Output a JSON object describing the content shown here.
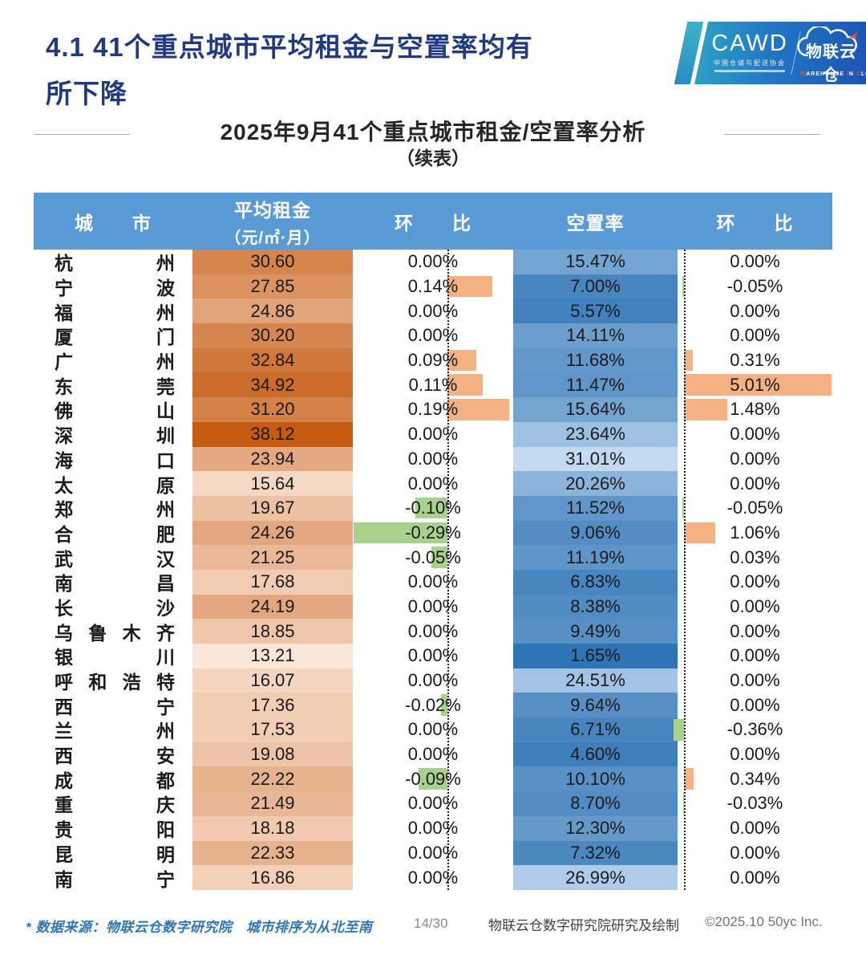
{
  "header": {
    "title_line1": "4.1 41个重点城市平均租金与空置率均有",
    "title_line2": "所下降"
  },
  "logo": {
    "cawd_acronym": "CAWD",
    "cawd_chinese": "中国仓储与配送协会",
    "brand_chinese": "物联云仓",
    "brand_en_w1i": "W",
    "brand_en_w1r": "AREHOUSE",
    "brand_en_w2i": "I",
    "brand_en_w2r": "N",
    "brand_en_w3i": "C",
    "brand_en_w3r": "LOUD"
  },
  "subtitle": {
    "line1": "2025年9月41个重点城市租金/空置率分析",
    "line2": "（续表）"
  },
  "table": {
    "headers": {
      "city": "城　　市",
      "rent_line1": "平均租金",
      "rent_line2": "（元/㎡·月）",
      "mom1": "环　　比",
      "vacancy": "空置率",
      "mom2": "环　　比"
    },
    "colors": {
      "header_bg": "#5B9BD5",
      "rent_min": "#FBE5D6",
      "rent_max": "#C55A11",
      "vacancy_low": "#2E74B5",
      "vacancy_high": "#C3D9F0",
      "bar_positive": "#F4B183",
      "bar_negative": "#A9D18E"
    },
    "rows": [
      {
        "city": "杭州",
        "rent": 30.6,
        "rent_mom": 0.0,
        "vacancy": 15.47,
        "vacancy_mom": 0.0
      },
      {
        "city": "宁波",
        "rent": 27.85,
        "rent_mom": 0.14,
        "vacancy": 7.0,
        "vacancy_mom": -0.05
      },
      {
        "city": "福州",
        "rent": 24.86,
        "rent_mom": 0.0,
        "vacancy": 5.57,
        "vacancy_mom": 0.0
      },
      {
        "city": "厦门",
        "rent": 30.2,
        "rent_mom": 0.0,
        "vacancy": 14.11,
        "vacancy_mom": 0.0
      },
      {
        "city": "广州",
        "rent": 32.84,
        "rent_mom": 0.09,
        "vacancy": 11.68,
        "vacancy_mom": 0.31
      },
      {
        "city": "东莞",
        "rent": 34.92,
        "rent_mom": 0.11,
        "vacancy": 11.47,
        "vacancy_mom": 5.01
      },
      {
        "city": "佛山",
        "rent": 31.2,
        "rent_mom": 0.19,
        "vacancy": 15.64,
        "vacancy_mom": 1.48
      },
      {
        "city": "深圳",
        "rent": 38.12,
        "rent_mom": 0.0,
        "vacancy": 23.64,
        "vacancy_mom": 0.0
      },
      {
        "city": "海口",
        "rent": 23.94,
        "rent_mom": 0.0,
        "vacancy": 31.01,
        "vacancy_mom": 0.0
      },
      {
        "city": "太原",
        "rent": 15.64,
        "rent_mom": 0.0,
        "vacancy": 20.26,
        "vacancy_mom": 0.0
      },
      {
        "city": "郑州",
        "rent": 19.67,
        "rent_mom": -0.1,
        "vacancy": 11.52,
        "vacancy_mom": -0.05
      },
      {
        "city": "合肥",
        "rent": 24.26,
        "rent_mom": -0.29,
        "vacancy": 9.06,
        "vacancy_mom": 1.06
      },
      {
        "city": "武汉",
        "rent": 21.25,
        "rent_mom": -0.05,
        "vacancy": 11.19,
        "vacancy_mom": 0.03
      },
      {
        "city": "南昌",
        "rent": 17.68,
        "rent_mom": 0.0,
        "vacancy": 6.83,
        "vacancy_mom": 0.0
      },
      {
        "city": "长沙",
        "rent": 24.19,
        "rent_mom": 0.0,
        "vacancy": 8.38,
        "vacancy_mom": 0.0
      },
      {
        "city": "乌鲁木齐",
        "rent": 18.85,
        "rent_mom": 0.0,
        "vacancy": 9.49,
        "vacancy_mom": 0.0
      },
      {
        "city": "银川",
        "rent": 13.21,
        "rent_mom": 0.0,
        "vacancy": 1.65,
        "vacancy_mom": 0.0
      },
      {
        "city": "呼和浩特",
        "rent": 16.07,
        "rent_mom": 0.0,
        "vacancy": 24.51,
        "vacancy_mom": 0.0
      },
      {
        "city": "西宁",
        "rent": 17.36,
        "rent_mom": -0.02,
        "vacancy": 9.64,
        "vacancy_mom": 0.0
      },
      {
        "city": "兰州",
        "rent": 17.53,
        "rent_mom": 0.0,
        "vacancy": 6.71,
        "vacancy_mom": -0.36
      },
      {
        "city": "西安",
        "rent": 19.08,
        "rent_mom": 0.0,
        "vacancy": 4.6,
        "vacancy_mom": 0.0
      },
      {
        "city": "成都",
        "rent": 22.22,
        "rent_mom": -0.09,
        "vacancy": 10.1,
        "vacancy_mom": 0.34
      },
      {
        "city": "重庆",
        "rent": 21.49,
        "rent_mom": 0.0,
        "vacancy": 8.7,
        "vacancy_mom": -0.03
      },
      {
        "city": "贵阳",
        "rent": 18.18,
        "rent_mom": 0.0,
        "vacancy": 12.3,
        "vacancy_mom": 0.0
      },
      {
        "city": "昆明",
        "rent": 22.33,
        "rent_mom": 0.0,
        "vacancy": 7.32,
        "vacancy_mom": 0.0
      },
      {
        "city": "南宁",
        "rent": 16.86,
        "rent_mom": 0.0,
        "vacancy": 26.99,
        "vacancy_mom": 0.0
      }
    ]
  },
  "footer": {
    "note": "* 数据来源：物联云仓数字研究院　城市排序为从北至南",
    "page": "14/30",
    "credit": "物联云仓数字研究院研究及绘制",
    "copyright": "©2025.10 50yc Inc."
  }
}
